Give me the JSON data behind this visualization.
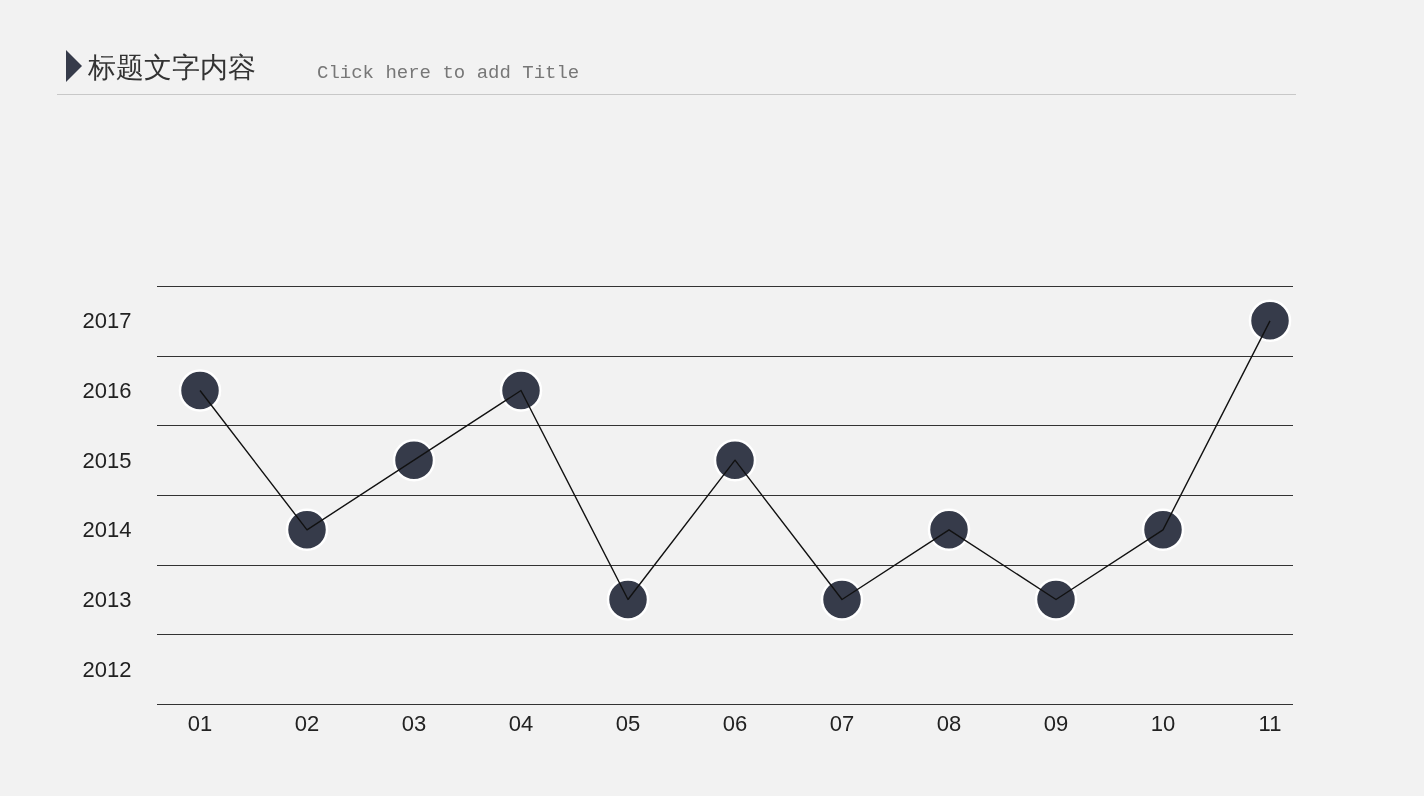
{
  "chart_data": {
    "type": "line",
    "title": "标题文字内容",
    "subtitle": "Click here to add Title",
    "categories": [
      "01",
      "02",
      "03",
      "04",
      "05",
      "06",
      "07",
      "08",
      "09",
      "10",
      "11"
    ],
    "series": [
      {
        "color": "#363b4a",
        "values": [
          2016,
          2014,
          2015,
          2016,
          2013,
          2015,
          2013,
          2014,
          2013,
          2014,
          2017
        ]
      }
    ],
    "ylim": [
      2011.5,
      2017.5
    ],
    "yticks": [
      2012,
      2013,
      2014,
      2015,
      2016,
      2017
    ],
    "ref_lines": [
      {
        "axis": "y",
        "value": 2011.5,
        "color": "#333333"
      },
      {
        "axis": "y",
        "value": 2012.5,
        "color": "#333333"
      },
      {
        "axis": "y",
        "value": 2013.5,
        "color": "#333333"
      },
      {
        "axis": "y",
        "value": 2014.5,
        "color": "#333333"
      },
      {
        "axis": "y",
        "value": 2015.5,
        "color": "#333333"
      },
      {
        "axis": "y",
        "value": 2016.5,
        "color": "#333333"
      },
      {
        "axis": "y",
        "value": 2017.5,
        "color": "#333333"
      }
    ],
    "marker": "circle",
    "line_style": "solid"
  }
}
